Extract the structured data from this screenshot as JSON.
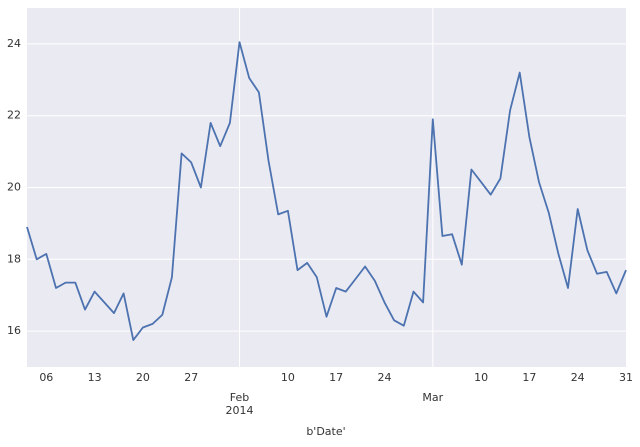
{
  "chart_data": {
    "type": "line",
    "xlabel": "b'Date'",
    "x": [
      "2014-01-02",
      "2014-01-03",
      "2014-01-06",
      "2014-01-07",
      "2014-01-08",
      "2014-01-09",
      "2014-01-10",
      "2014-01-13",
      "2014-01-14",
      "2014-01-15",
      "2014-01-16",
      "2014-01-17",
      "2014-01-20",
      "2014-01-21",
      "2014-01-22",
      "2014-01-23",
      "2014-01-24",
      "2014-01-27",
      "2014-01-28",
      "2014-01-29",
      "2014-01-30",
      "2014-01-31",
      "2014-02-03",
      "2014-02-04",
      "2014-02-05",
      "2014-02-06",
      "2014-02-07",
      "2014-02-10",
      "2014-02-11",
      "2014-02-12",
      "2014-02-13",
      "2014-02-14",
      "2014-02-17",
      "2014-02-18",
      "2014-02-19",
      "2014-02-20",
      "2014-02-21",
      "2014-02-24",
      "2014-02-25",
      "2014-02-26",
      "2014-02-27",
      "2014-02-28",
      "2014-03-03",
      "2014-03-04",
      "2014-03-05",
      "2014-03-06",
      "2014-03-07",
      "2014-03-10",
      "2014-03-11",
      "2014-03-12",
      "2014-03-13",
      "2014-03-14",
      "2014-03-17",
      "2014-03-18",
      "2014-03-19",
      "2014-03-20",
      "2014-03-21",
      "2014-03-24",
      "2014-03-25",
      "2014-03-26",
      "2014-03-27",
      "2014-03-28",
      "2014-03-31"
    ],
    "series": [
      {
        "color": "#4c72b0",
        "values": [
          18.9,
          18.0,
          18.15,
          17.2,
          17.35,
          17.35,
          16.6,
          17.1,
          16.8,
          16.5,
          17.05,
          15.75,
          16.1,
          16.2,
          16.45,
          17.5,
          20.95,
          20.7,
          20.0,
          21.8,
          21.15,
          21.8,
          24.05,
          23.05,
          22.65,
          20.75,
          19.25,
          19.35,
          17.7,
          17.9,
          17.5,
          16.4,
          17.2,
          17.1,
          17.45,
          17.8,
          17.4,
          16.8,
          16.3,
          16.15,
          17.1,
          16.8,
          21.9,
          18.65,
          18.7,
          17.85,
          20.5,
          20.15,
          19.8,
          20.25,
          22.15,
          23.2,
          21.4,
          20.15,
          19.3,
          18.15,
          17.2,
          19.4,
          18.25,
          17.6,
          17.65,
          17.05,
          17.7
        ]
      }
    ],
    "xticks": [
      {
        "value": "2014-01-06",
        "label": "06"
      },
      {
        "value": "2014-01-13",
        "label": "13"
      },
      {
        "value": "2014-01-20",
        "label": "20"
      },
      {
        "value": "2014-01-27",
        "label": "27"
      },
      {
        "value": "2014-02-03",
        "label": "Feb\n2014",
        "major": true
      },
      {
        "value": "2014-02-10",
        "label": "10"
      },
      {
        "value": "2014-02-17",
        "label": "17"
      },
      {
        "value": "2014-02-24",
        "label": "24"
      },
      {
        "value": "2014-03-03",
        "label": "Mar",
        "major": true
      },
      {
        "value": "2014-03-10",
        "label": "10"
      },
      {
        "value": "2014-03-17",
        "label": "17"
      },
      {
        "value": "2014-03-24",
        "label": "24"
      },
      {
        "value": "2014-03-31",
        "label": "31"
      }
    ],
    "ylim": [
      15,
      25
    ],
    "yticks": [
      16,
      18,
      20,
      22,
      24
    ],
    "grid": true
  }
}
